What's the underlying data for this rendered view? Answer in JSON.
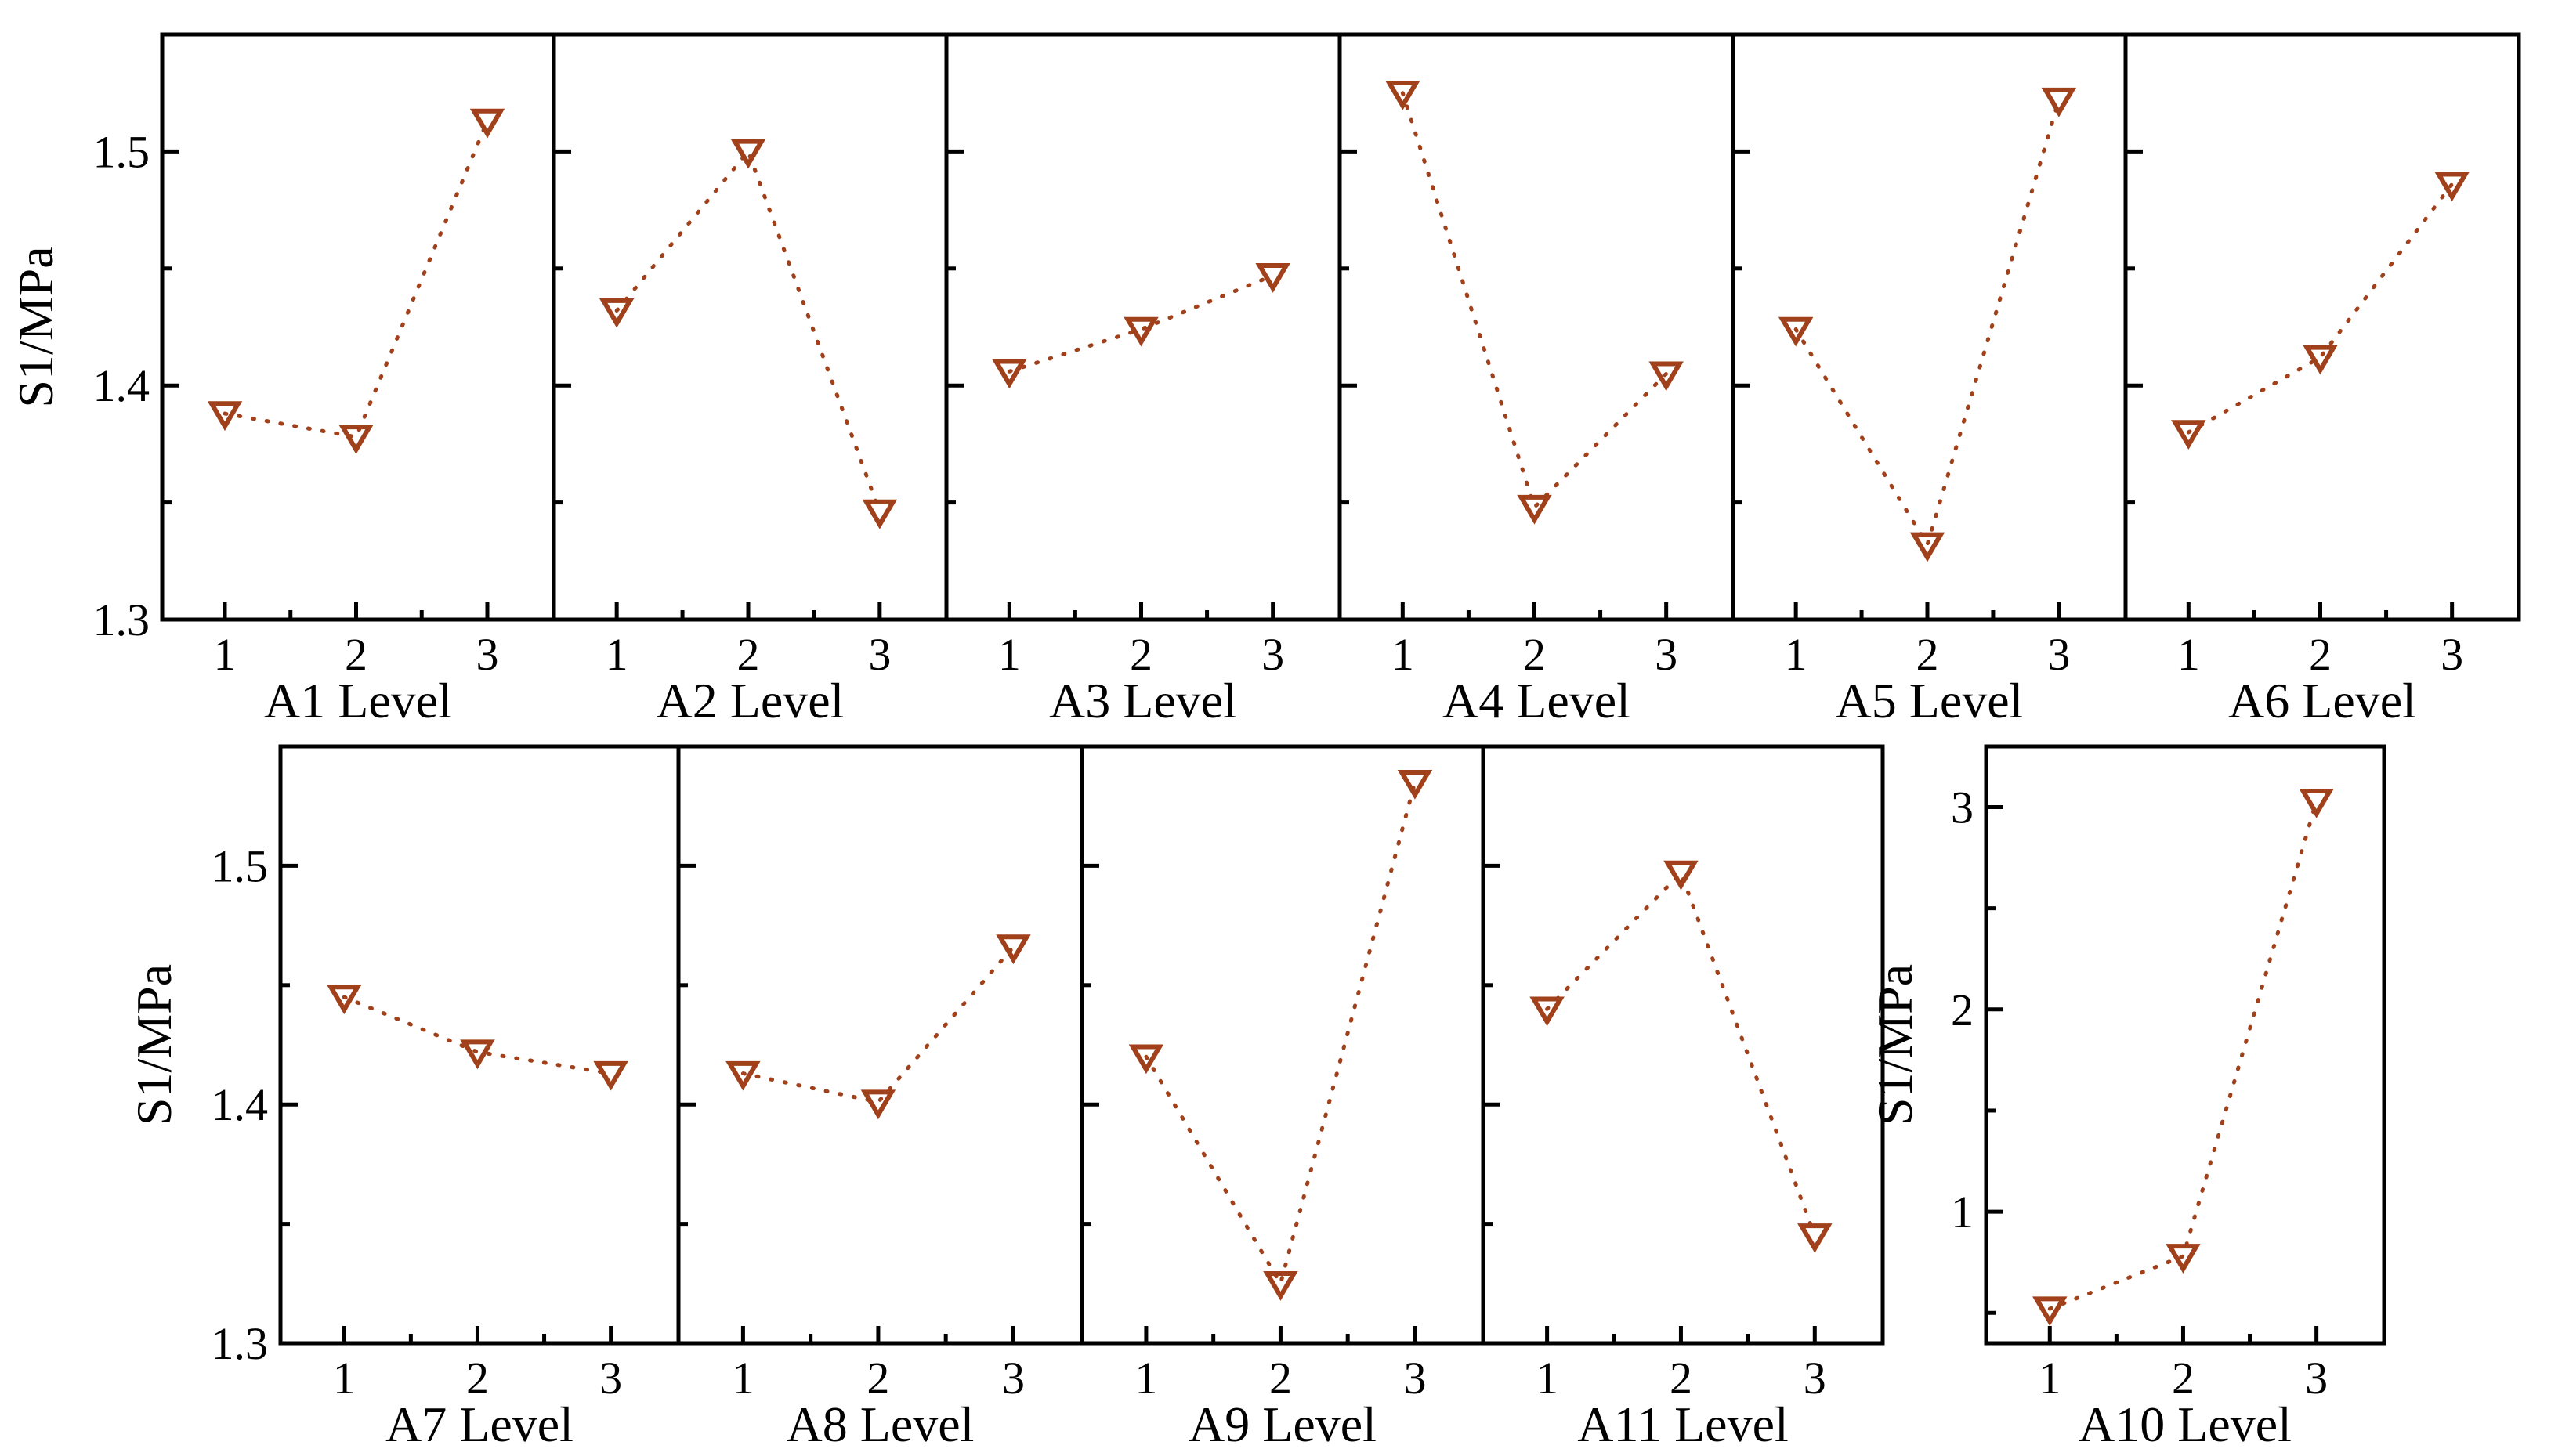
{
  "figure_colors": {
    "series": "#a0411b",
    "axes": "#000000"
  },
  "chart_data": [
    {
      "type": "line",
      "panel": "A1",
      "xlabel": "A1 Level",
      "ylabel": "S1/MPa",
      "x": [
        1,
        2,
        3
      ],
      "values": [
        1.388,
        1.378,
        1.513
      ],
      "ylim": [
        1.3,
        1.55
      ],
      "yticks": [
        1.3,
        1.4,
        1.5
      ],
      "ytick_labels": [
        "1.3",
        "1.4",
        "1.5"
      ],
      "xtick_labels": [
        "1",
        "2",
        "3"
      ],
      "marker": "triangle-down"
    },
    {
      "type": "line",
      "panel": "A2",
      "xlabel": "A2 Level",
      "ylabel": "",
      "x": [
        1,
        2,
        3
      ],
      "values": [
        1.432,
        1.5,
        1.346
      ],
      "ylim": [
        1.3,
        1.55
      ],
      "yticks": [
        1.3,
        1.4,
        1.5
      ],
      "xtick_labels": [
        "1",
        "2",
        "3"
      ],
      "marker": "triangle-down"
    },
    {
      "type": "line",
      "panel": "A3",
      "xlabel": "A3 Level",
      "ylabel": "",
      "x": [
        1,
        2,
        3
      ],
      "values": [
        1.406,
        1.424,
        1.447
      ],
      "ylim": [
        1.3,
        1.55
      ],
      "yticks": [
        1.3,
        1.4,
        1.5
      ],
      "xtick_labels": [
        "1",
        "2",
        "3"
      ],
      "marker": "triangle-down"
    },
    {
      "type": "line",
      "panel": "A4",
      "xlabel": "A4 Level",
      "ylabel": "",
      "x": [
        1,
        2,
        3
      ],
      "values": [
        1.525,
        1.348,
        1.405
      ],
      "ylim": [
        1.3,
        1.55
      ],
      "yticks": [
        1.3,
        1.4,
        1.5
      ],
      "xtick_labels": [
        "1",
        "2",
        "3"
      ],
      "marker": "triangle-down"
    },
    {
      "type": "line",
      "panel": "A5",
      "xlabel": "A5 Level",
      "ylabel": "",
      "x": [
        1,
        2,
        3
      ],
      "values": [
        1.424,
        1.332,
        1.522
      ],
      "ylim": [
        1.3,
        1.55
      ],
      "yticks": [
        1.3,
        1.4,
        1.5
      ],
      "xtick_labels": [
        "1",
        "2",
        "3"
      ],
      "marker": "triangle-down"
    },
    {
      "type": "line",
      "panel": "A6",
      "xlabel": "A6 Level",
      "ylabel": "",
      "x": [
        1,
        2,
        3
      ],
      "values": [
        1.38,
        1.412,
        1.486
      ],
      "ylim": [
        1.3,
        1.55
      ],
      "yticks": [
        1.3,
        1.4,
        1.5
      ],
      "xtick_labels": [
        "1",
        "2",
        "3"
      ],
      "marker": "triangle-down"
    },
    {
      "type": "line",
      "panel": "A7",
      "xlabel": "A7 Level",
      "ylabel": "S1/MPa",
      "x": [
        1,
        2,
        3
      ],
      "values": [
        1.445,
        1.422,
        1.413
      ],
      "ylim": [
        1.3,
        1.55
      ],
      "yticks": [
        1.3,
        1.4,
        1.5
      ],
      "ytick_labels": [
        "1.3",
        "1.4",
        "1.5"
      ],
      "xtick_labels": [
        "1",
        "2",
        "3"
      ],
      "marker": "triangle-down"
    },
    {
      "type": "line",
      "panel": "A8",
      "xlabel": "A8 Level",
      "ylabel": "",
      "x": [
        1,
        2,
        3
      ],
      "values": [
        1.413,
        1.401,
        1.466
      ],
      "ylim": [
        1.3,
        1.55
      ],
      "yticks": [
        1.3,
        1.4,
        1.5
      ],
      "xtick_labels": [
        "1",
        "2",
        "3"
      ],
      "marker": "triangle-down"
    },
    {
      "type": "line",
      "panel": "A9",
      "xlabel": "A9 Level",
      "ylabel": "",
      "x": [
        1,
        2,
        3
      ],
      "values": [
        1.42,
        1.325,
        1.535
      ],
      "ylim": [
        1.3,
        1.55
      ],
      "yticks": [
        1.3,
        1.4,
        1.5
      ],
      "xtick_labels": [
        "1",
        "2",
        "3"
      ],
      "marker": "triangle-down"
    },
    {
      "type": "line",
      "panel": "A11",
      "xlabel": "A11 Level",
      "ylabel": "",
      "x": [
        1,
        2,
        3
      ],
      "values": [
        1.44,
        1.497,
        1.345
      ],
      "ylim": [
        1.3,
        1.55
      ],
      "yticks": [
        1.3,
        1.4,
        1.5
      ],
      "xtick_labels": [
        "1",
        "2",
        "3"
      ],
      "marker": "triangle-down"
    },
    {
      "type": "line",
      "panel": "A10",
      "xlabel": "A10 Level",
      "ylabel": "S1/MPa",
      "x": [
        1,
        2,
        3
      ],
      "values": [
        0.52,
        0.78,
        3.03
      ],
      "ylim": [
        0.35,
        3.3
      ],
      "yticks": [
        1,
        2,
        3
      ],
      "ytick_labels": [
        "1",
        "2",
        "3"
      ],
      "xtick_labels": [
        "1",
        "2",
        "3"
      ],
      "marker": "triangle-down"
    }
  ]
}
